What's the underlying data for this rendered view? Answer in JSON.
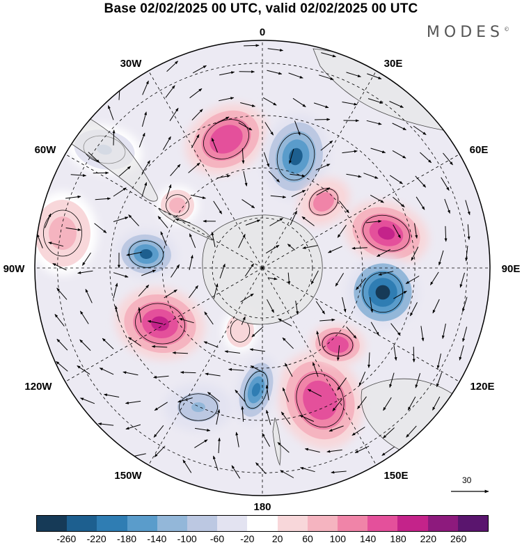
{
  "title": "Base 02/02/2025 00 UTC, valid 02/02/2025 00 UTC",
  "logo": "MODES",
  "logo_mark": "©",
  "longitude_labels": {
    "n0": "0",
    "n30e": "30E",
    "n60e": "60E",
    "n90e": "90E",
    "n120e": "120E",
    "n150e": "150E",
    "n180": "180",
    "n150w": "150W",
    "n120w": "120W",
    "n90w": "90W",
    "n60w": "60W",
    "n30w": "30W"
  },
  "reference_vector": {
    "label": "30"
  },
  "colorbar": {
    "ticks": [
      "-260",
      "-220",
      "-180",
      "-140",
      "-100",
      "-60",
      "-20",
      "20",
      "60",
      "100",
      "140",
      "180",
      "220",
      "260"
    ],
    "colors": [
      "#163a57",
      "#1d5f8f",
      "#2f7db3",
      "#5a9ccb",
      "#93b7d9",
      "#bcc8e2",
      "#e3e3f1",
      "#ffffff",
      "#f8d7da",
      "#f5b4c0",
      "#f084a8",
      "#e4509b",
      "#c4238a",
      "#8d1a7d",
      "#5a156e"
    ]
  },
  "map": {
    "projection": "south-polar-stereographic",
    "land_color": "#e6e6e6",
    "anomaly_centers": [
      {
        "kind": "positive",
        "value": 180
      },
      {
        "kind": "negative",
        "value": -220
      },
      {
        "kind": "positive",
        "value": 140
      },
      {
        "kind": "positive",
        "value": 220
      },
      {
        "kind": "negative",
        "value": -260
      },
      {
        "kind": "negative",
        "value": -220
      },
      {
        "kind": "positive",
        "value": 220
      },
      {
        "kind": "positive",
        "value": 180
      },
      {
        "kind": "positive",
        "value": 180
      },
      {
        "kind": "negative",
        "value": -180
      },
      {
        "kind": "positive",
        "value": 100
      },
      {
        "kind": "negative",
        "value": -100
      },
      {
        "kind": "positive",
        "value": 60
      },
      {
        "kind": "negative",
        "value": -60
      },
      {
        "kind": "positive",
        "value": 100
      }
    ]
  }
}
